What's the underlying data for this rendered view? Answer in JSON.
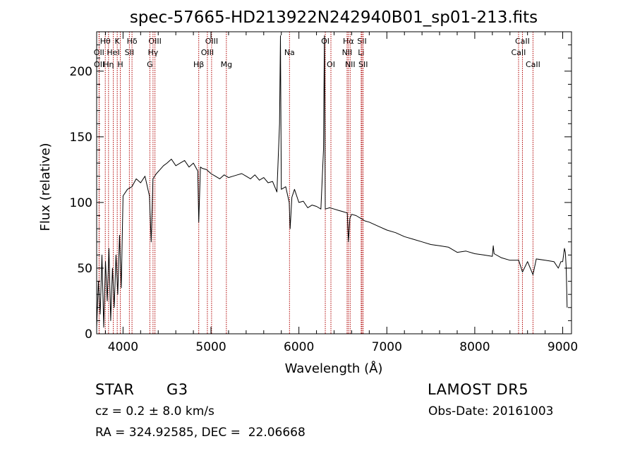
{
  "chart_data": {
    "type": "line",
    "title": "spec-57665-HD213922N242940B01_sp01-213.fits",
    "xlabel": "Wavelength (Å)",
    "ylabel": "Flux (relative)",
    "xlim": [
      3700,
      9100
    ],
    "ylim": [
      0,
      230
    ],
    "x_ticks": [
      4000,
      5000,
      6000,
      7000,
      8000,
      9000
    ],
    "y_ticks": [
      0,
      50,
      100,
      150,
      200
    ],
    "grid": false,
    "line_color": "#000000",
    "marker_color": "#b00000",
    "series": [
      {
        "x": [
          3700,
          3720,
          3740,
          3760,
          3780,
          3800,
          3820,
          3840,
          3860,
          3880,
          3900,
          3920,
          3940,
          3960,
          3980,
          4000,
          4050,
          4100,
          4150,
          4200,
          4250,
          4300,
          4320,
          4340,
          4380,
          4420,
          4460,
          4500,
          4550,
          4600,
          4650,
          4700,
          4750,
          4800,
          4850,
          4861,
          4880,
          4900,
          4950,
          5000,
          5050,
          5100,
          5150,
          5200,
          5250,
          5300,
          5350,
          5400,
          5450,
          5500,
          5550,
          5600,
          5650,
          5700,
          5750,
          5780,
          5790,
          5800,
          5850,
          5890,
          5900,
          5920,
          5950,
          6000,
          6050,
          6100,
          6150,
          6200,
          6250,
          6280,
          6290,
          6300,
          6350,
          6400,
          6450,
          6500,
          6550,
          6563,
          6580,
          6600,
          6650,
          6700,
          6750,
          6800,
          6900,
          7000,
          7100,
          7200,
          7300,
          7400,
          7500,
          7600,
          7700,
          7800,
          7900,
          8000,
          8100,
          8200,
          8210,
          8220,
          8300,
          8400,
          8500,
          8542,
          8600,
          8662,
          8700,
          8800,
          8900,
          8950,
          8980,
          9000,
          9010,
          9020,
          9030,
          9040,
          9050
        ],
        "y": [
          5,
          40,
          15,
          60,
          5,
          55,
          25,
          65,
          10,
          50,
          20,
          60,
          30,
          75,
          35,
          105,
          110,
          112,
          118,
          115,
          120,
          105,
          70,
          118,
          122,
          125,
          128,
          130,
          133,
          128,
          130,
          132,
          127,
          130,
          124,
          85,
          127,
          126,
          125,
          122,
          120,
          118,
          121,
          119,
          120,
          121,
          122,
          120,
          118,
          121,
          117,
          119,
          115,
          116,
          108,
          160,
          227,
          110,
          112,
          100,
          80,
          104,
          110,
          100,
          101,
          96,
          98,
          97,
          95,
          140,
          227,
          95,
          96,
          95,
          94,
          93,
          92,
          70,
          88,
          91,
          90,
          88,
          86,
          85,
          82,
          79,
          77,
          74,
          72,
          70,
          68,
          67,
          66,
          62,
          63,
          61,
          60,
          59,
          67,
          61,
          58,
          56,
          56,
          47,
          55,
          45,
          57,
          56,
          55,
          50,
          55,
          55,
          60,
          65,
          62,
          50,
          20
        ]
      }
    ],
    "line_markers": [
      {
        "label": "Hθ",
        "x": 3798,
        "row": 1
      },
      {
        "label": "OII",
        "x": 3727,
        "row": 2
      },
      {
        "label": "OII",
        "x": 3729,
        "row": 3
      },
      {
        "label": "K",
        "x": 3934,
        "row": 1
      },
      {
        "label": "HeI",
        "x": 3889,
        "row": 2
      },
      {
        "label": "Hη",
        "x": 3835,
        "row": 3
      },
      {
        "label": "Hδ",
        "x": 4102,
        "row": 1
      },
      {
        "label": "SII",
        "x": 4072,
        "row": 2
      },
      {
        "label": "H",
        "x": 3969,
        "row": 3
      },
      {
        "label": "OIII",
        "x": 4363,
        "row": 1
      },
      {
        "label": "Hγ",
        "x": 4341,
        "row": 2
      },
      {
        "label": "G",
        "x": 4305,
        "row": 3
      },
      {
        "label": "OIII",
        "x": 5007,
        "row": 1
      },
      {
        "label": "OIII",
        "x": 4959,
        "row": 2
      },
      {
        "label": "Hβ",
        "x": 4861,
        "row": 3
      },
      {
        "label": "Mg",
        "x": 5175,
        "row": 3
      },
      {
        "label": "Na",
        "x": 5893,
        "row": 2
      },
      {
        "label": "OI",
        "x": 6300,
        "row": 1
      },
      {
        "label": "OI",
        "x": 6364,
        "row": 3
      },
      {
        "label": "Hα",
        "x": 6563,
        "row": 1
      },
      {
        "label": "NII",
        "x": 6548,
        "row": 2
      },
      {
        "label": "NII",
        "x": 6583,
        "row": 3
      },
      {
        "label": "SII",
        "x": 6717,
        "row": 1
      },
      {
        "label": "Li",
        "x": 6708,
        "row": 2
      },
      {
        "label": "SII",
        "x": 6731,
        "row": 3
      },
      {
        "label": "CaII",
        "x": 8542,
        "row": 1
      },
      {
        "label": "CaII",
        "x": 8498,
        "row": 2
      },
      {
        "label": "CaII",
        "x": 8662,
        "row": 3
      }
    ]
  },
  "info": {
    "object_type": "STAR",
    "subclass": "G3",
    "survey": "LAMOST DR5",
    "redshift": "cz = 0.2 ± 8.0 km/s",
    "obs_date": "Obs-Date: 20161003",
    "coords": "RA = 324.92585, DEC =  22.06668"
  }
}
